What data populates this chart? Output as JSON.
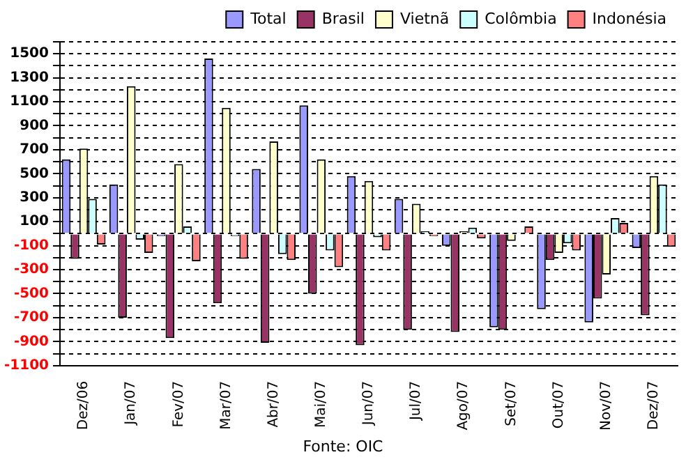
{
  "chart_data": {
    "type": "bar",
    "categories": [
      "Dez/06",
      "Jan/07",
      "Fev/07",
      "Mar/07",
      "Abr/07",
      "Mai/07",
      "Jun/07",
      "Jul/07",
      "Ago/07",
      "Set/07",
      "Out/07",
      "Nov/07",
      "Dez/07"
    ],
    "series": [
      {
        "name": "Total",
        "color": "#9999ff",
        "values": [
          620,
          410,
          -20,
          1460,
          540,
          1070,
          480,
          290,
          -100,
          -780,
          -630,
          -740,
          -120
        ]
      },
      {
        "name": "Brasil",
        "color": "#993366",
        "values": [
          -210,
          -700,
          -870,
          -580,
          -910,
          -500,
          -930,
          -800,
          -820,
          -800,
          -220,
          -540,
          -680
        ]
      },
      {
        "name": "Vietnã",
        "color": "#ffffcc",
        "values": [
          710,
          1230,
          580,
          1050,
          770,
          620,
          440,
          250,
          20,
          -60,
          -160,
          -340,
          480
        ]
      },
      {
        "name": "Colômbia",
        "color": "#ccffff",
        "values": [
          290,
          -50,
          60,
          -20,
          -170,
          -140,
          -30,
          20,
          50,
          10,
          -80,
          130,
          410
        ]
      },
      {
        "name": "Indonésia",
        "color": "#ff8080",
        "values": [
          -90,
          -160,
          -230,
          -210,
          -220,
          -280,
          -140,
          -20,
          -40,
          60,
          -140,
          90,
          -110
        ]
      }
    ],
    "ylim": [
      -1100,
      1600
    ],
    "yticks": [
      -1100,
      {
        "value": -1000,
        "label": null
      },
      -900,
      {
        "value": -800,
        "label": null
      },
      -700,
      {
        "value": -600,
        "label": null
      },
      -500,
      {
        "value": -400,
        "label": null
      },
      -300,
      {
        "value": -200,
        "label": null
      },
      -100,
      {
        "value": 0,
        "label": null
      },
      100,
      {
        "value": 200,
        "label": null
      },
      300,
      {
        "value": 400,
        "label": null
      },
      500,
      {
        "value": 600,
        "label": null
      },
      700,
      {
        "value": 800,
        "label": null
      },
      900,
      {
        "value": 1000,
        "label": null
      },
      1100,
      {
        "value": 1200,
        "label": null
      },
      1300,
      {
        "value": 1400,
        "label": null
      },
      1500,
      {
        "value": 1600,
        "label": null
      }
    ],
    "grid": "y",
    "legend": "top right",
    "annotations": [
      "Fonte: OIC"
    ]
  }
}
